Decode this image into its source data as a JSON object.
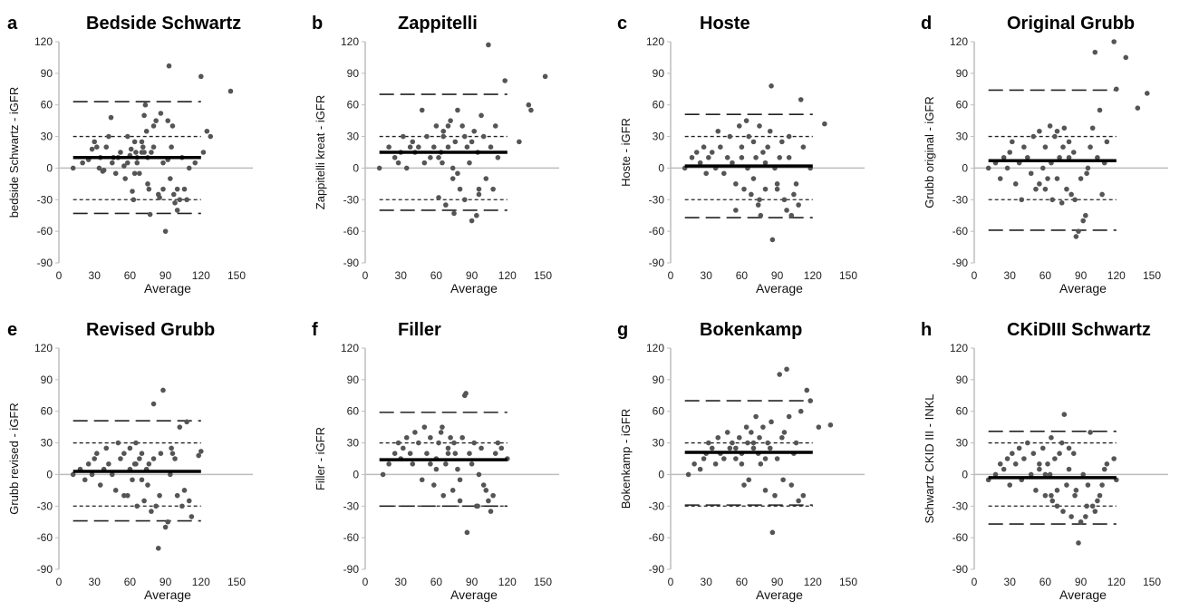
{
  "chart_data": [
    {
      "type": "scatter",
      "letter": "a",
      "title": "Bedside Schwartz",
      "xlabel": "Average",
      "ylabel": "bedside Schwartz - iGFR",
      "xlim": [
        0,
        150
      ],
      "ylim": [
        -90,
        120
      ],
      "xticks": [
        0,
        30,
        60,
        90,
        120,
        150
      ],
      "yticks": [
        -90,
        -60,
        -30,
        0,
        30,
        60,
        90,
        120
      ],
      "mean": 10,
      "loa": [
        -43,
        63
      ],
      "limits": [
        -30,
        30
      ],
      "x": [
        12,
        20,
        25,
        28,
        30,
        32,
        34,
        35,
        37,
        38,
        40,
        42,
        44,
        45,
        46,
        48,
        50,
        52,
        55,
        58,
        60,
        61,
        62,
        63,
        64,
        65,
        66,
        68,
        70,
        71,
        72,
        73,
        74,
        75,
        76,
        77,
        78,
        80,
        82,
        84,
        85,
        86,
        88,
        90,
        92,
        93,
        94,
        95,
        96,
        97,
        98,
        100,
        102,
        104,
        106,
        108,
        110,
        115,
        120,
        122,
        125,
        128,
        145,
        64,
        66,
        70,
        72,
        75,
        80,
        88,
        92,
        100,
        56,
        58
      ],
      "y": [
        0,
        5,
        8,
        18,
        25,
        20,
        0,
        10,
        -3,
        -2,
        20,
        30,
        48,
        5,
        10,
        -5,
        10,
        15,
        2,
        5,
        12,
        18,
        -22,
        -30,
        25,
        15,
        10,
        -5,
        15,
        20,
        50,
        60,
        35,
        -15,
        -20,
        -44,
        15,
        20,
        45,
        -25,
        -28,
        52,
        5,
        -60,
        8,
        97,
        -10,
        20,
        40,
        -25,
        -33,
        -40,
        -30,
        10,
        -20,
        -30,
        0,
        5,
        87,
        15,
        35,
        30,
        73,
        -5,
        5,
        25,
        15,
        10,
        40,
        -20,
        45,
        -20,
        -10,
        30
      ]
    },
    {
      "type": "scatter",
      "letter": "b",
      "title": "Zappitelli",
      "xlabel": "Average",
      "ylabel": "Zappitelli kreat - iGFR",
      "xlim": [
        0,
        150
      ],
      "ylim": [
        -90,
        120
      ],
      "xticks": [
        0,
        30,
        60,
        90,
        120,
        150
      ],
      "yticks": [
        -90,
        -60,
        -30,
        0,
        30,
        60,
        90,
        120
      ],
      "mean": 15,
      "loa": [
        -40,
        70
      ],
      "limits": [
        -30,
        30
      ],
      "x": [
        12,
        20,
        25,
        28,
        30,
        32,
        35,
        38,
        40,
        42,
        45,
        48,
        50,
        52,
        55,
        58,
        60,
        62,
        64,
        65,
        66,
        68,
        70,
        72,
        74,
        75,
        76,
        78,
        80,
        82,
        84,
        86,
        88,
        90,
        92,
        94,
        95,
        96,
        98,
        100,
        102,
        104,
        106,
        108,
        110,
        112,
        118,
        130,
        138,
        140,
        152,
        62,
        66,
        70,
        74,
        78,
        84,
        90,
        96
      ],
      "y": [
        0,
        20,
        10,
        5,
        15,
        30,
        0,
        20,
        25,
        15,
        20,
        55,
        5,
        30,
        10,
        20,
        40,
        -28,
        15,
        5,
        30,
        -35,
        40,
        45,
        -10,
        -43,
        25,
        55,
        -20,
        40,
        -30,
        20,
        5,
        -50,
        35,
        -45,
        15,
        -20,
        50,
        30,
        -10,
        117,
        20,
        -20,
        40,
        10,
        83,
        25,
        60,
        55,
        87,
        10,
        35,
        20,
        0,
        -5,
        30,
        25,
        -25
      ]
    },
    {
      "type": "scatter",
      "letter": "c",
      "title": "Hoste",
      "xlabel": "Average",
      "ylabel": "Hoste - iGFR",
      "xlim": [
        0,
        150
      ],
      "ylim": [
        -90,
        120
      ],
      "xticks": [
        0,
        30,
        60,
        90,
        120,
        150
      ],
      "yticks": [
        -90,
        -60,
        -30,
        0,
        30,
        60,
        90,
        120
      ],
      "mean": 2,
      "loa": [
        -47,
        51
      ],
      "limits": [
        -30,
        30
      ],
      "x": [
        12,
        18,
        22,
        25,
        28,
        30,
        32,
        35,
        38,
        40,
        42,
        45,
        48,
        50,
        52,
        55,
        58,
        60,
        62,
        64,
        65,
        66,
        68,
        70,
        72,
        74,
        75,
        76,
        78,
        80,
        82,
        84,
        85,
        86,
        88,
        90,
        92,
        94,
        96,
        98,
        100,
        102,
        104,
        106,
        108,
        110,
        112,
        118,
        130,
        60,
        65,
        70,
        80,
        90,
        100,
        55,
        75
      ],
      "y": [
        0,
        10,
        15,
        5,
        20,
        -5,
        10,
        15,
        0,
        35,
        20,
        -5,
        10,
        30,
        5,
        -15,
        40,
        20,
        -20,
        45,
        0,
        30,
        -25,
        25,
        10,
        -35,
        40,
        -45,
        15,
        -20,
        20,
        35,
        78,
        -68,
        0,
        -15,
        10,
        25,
        -30,
        -40,
        10,
        -45,
        -25,
        -15,
        -35,
        65,
        20,
        0,
        42,
        10,
        0,
        -10,
        5,
        -20,
        30,
        -40,
        -30
      ]
    },
    {
      "type": "scatter",
      "letter": "d",
      "title": "Original Grubb",
      "xlabel": "Average",
      "ylabel": "Grubb original - iGFR",
      "xlim": [
        0,
        150
      ],
      "ylim": [
        -90,
        120
      ],
      "xticks": [
        0,
        30,
        60,
        90,
        120,
        150
      ],
      "yticks": [
        -90,
        -60,
        -30,
        0,
        30,
        60,
        90,
        120
      ],
      "mean": 7,
      "loa": [
        -59,
        74
      ],
      "limits": [
        -30,
        30
      ],
      "x": [
        12,
        18,
        22,
        25,
        28,
        30,
        32,
        35,
        38,
        40,
        42,
        45,
        48,
        50,
        52,
        55,
        58,
        60,
        62,
        64,
        65,
        66,
        68,
        70,
        72,
        74,
        75,
        76,
        78,
        80,
        82,
        84,
        85,
        86,
        88,
        90,
        92,
        94,
        96,
        98,
        100,
        102,
        104,
        106,
        108,
        110,
        112,
        118,
        120,
        128,
        138,
        146,
        60,
        70,
        80,
        95,
        55
      ],
      "y": [
        0,
        5,
        -10,
        10,
        0,
        15,
        25,
        -15,
        5,
        -30,
        20,
        10,
        -5,
        30,
        -20,
        35,
        0,
        20,
        -10,
        40,
        5,
        -30,
        30,
        35,
        10,
        -33,
        20,
        38,
        -20,
        10,
        -25,
        15,
        -30,
        -65,
        -60,
        -10,
        -50,
        -45,
        0,
        20,
        38,
        110,
        10,
        55,
        -25,
        5,
        25,
        120,
        75,
        105,
        57,
        71,
        -20,
        -10,
        25,
        -5,
        -15
      ]
    },
    {
      "type": "scatter",
      "letter": "e",
      "title": "Revised Grubb",
      "xlabel": "Average",
      "ylabel": "Grubb revised - iGFR",
      "xlim": [
        0,
        150
      ],
      "ylim": [
        -90,
        120
      ],
      "xticks": [
        0,
        30,
        60,
        90,
        120,
        150
      ],
      "yticks": [
        -90,
        -60,
        -30,
        0,
        30,
        60,
        90,
        120
      ],
      "mean": 3,
      "loa": [
        -44,
        51
      ],
      "limits": [
        -30,
        30
      ],
      "x": [
        12,
        18,
        22,
        25,
        28,
        30,
        32,
        35,
        38,
        40,
        42,
        45,
        48,
        50,
        52,
        55,
        58,
        60,
        62,
        64,
        65,
        66,
        68,
        70,
        72,
        74,
        75,
        76,
        78,
        80,
        82,
        84,
        85,
        86,
        88,
        90,
        92,
        94,
        96,
        98,
        100,
        102,
        104,
        106,
        108,
        110,
        112,
        118,
        120,
        60,
        70,
        80,
        95,
        55,
        65
      ],
      "y": [
        0,
        5,
        -5,
        10,
        0,
        15,
        20,
        -10,
        5,
        25,
        10,
        0,
        -15,
        30,
        15,
        20,
        -20,
        25,
        -5,
        10,
        30,
        -30,
        15,
        20,
        -25,
        5,
        -10,
        10,
        -35,
        67,
        -30,
        -70,
        -20,
        20,
        80,
        -50,
        -45,
        0,
        20,
        15,
        -20,
        45,
        -30,
        -15,
        50,
        -25,
        -40,
        18,
        22,
        5,
        -5,
        15,
        25,
        -20,
        10
      ]
    },
    {
      "type": "scatter",
      "letter": "f",
      "title": "Filler",
      "xlabel": "Average",
      "ylabel": "Filler - iGFR",
      "xlim": [
        0,
        150
      ],
      "ylim": [
        -90,
        120
      ],
      "xticks": [
        0,
        30,
        60,
        90,
        120,
        150
      ],
      "yticks": [
        -90,
        -60,
        -30,
        0,
        30,
        60,
        90,
        120
      ],
      "mean": 14,
      "loa": [
        -30,
        59
      ],
      "limits": [
        -30,
        30
      ],
      "x": [
        15,
        20,
        25,
        28,
        30,
        32,
        35,
        38,
        40,
        42,
        45,
        48,
        50,
        52,
        55,
        58,
        60,
        62,
        64,
        65,
        66,
        68,
        70,
        72,
        74,
        75,
        76,
        78,
        80,
        82,
        84,
        85,
        86,
        88,
        90,
        92,
        94,
        96,
        98,
        100,
        102,
        104,
        106,
        108,
        110,
        112,
        115,
        120,
        60,
        70,
        80,
        95,
        55
      ],
      "y": [
        0,
        10,
        20,
        30,
        15,
        25,
        35,
        20,
        10,
        40,
        30,
        -5,
        45,
        20,
        35,
        -10,
        15,
        30,
        40,
        45,
        -20,
        10,
        25,
        35,
        -15,
        30,
        20,
        5,
        -25,
        35,
        75,
        77,
        -55,
        20,
        10,
        30,
        -30,
        0,
        25,
        -10,
        -15,
        -25,
        -35,
        -20,
        20,
        30,
        25,
        15,
        5,
        20,
        -5,
        -30,
        10
      ]
    },
    {
      "type": "scatter",
      "letter": "g",
      "title": "Bokenkamp",
      "xlabel": "Average",
      "ylabel": "Bokenkamp - iGFR",
      "xlim": [
        0,
        150
      ],
      "ylim": [
        -90,
        120
      ],
      "xticks": [
        0,
        30,
        60,
        90,
        120,
        150
      ],
      "yticks": [
        -90,
        -60,
        -30,
        0,
        30,
        60,
        90,
        120
      ],
      "mean": 21,
      "loa": [
        -29,
        70
      ],
      "limits": [
        -30,
        30
      ],
      "x": [
        15,
        20,
        25,
        28,
        30,
        32,
        35,
        38,
        40,
        42,
        45,
        48,
        50,
        52,
        55,
        58,
        60,
        62,
        64,
        65,
        66,
        68,
        70,
        72,
        74,
        75,
        76,
        78,
        80,
        82,
        84,
        85,
        86,
        88,
        90,
        92,
        94,
        96,
        98,
        100,
        102,
        104,
        106,
        108,
        110,
        112,
        115,
        118,
        125,
        135,
        60,
        70,
        80,
        95,
        55
      ],
      "y": [
        0,
        10,
        5,
        15,
        20,
        30,
        25,
        10,
        35,
        20,
        15,
        40,
        25,
        30,
        15,
        35,
        20,
        -10,
        45,
        30,
        -5,
        40,
        25,
        55,
        20,
        35,
        10,
        45,
        -15,
        30,
        25,
        50,
        -55,
        -20,
        15,
        95,
        35,
        40,
        100,
        55,
        -10,
        20,
        30,
        -25,
        60,
        -20,
        80,
        70,
        45,
        47,
        10,
        30,
        15,
        -5,
        25
      ]
    },
    {
      "type": "scatter",
      "letter": "h",
      "title": "CKiDIII Schwartz",
      "xlabel": "Average",
      "ylabel": "Schwartz CKID III - INKL",
      "xlim": [
        0,
        150
      ],
      "ylim": [
        -90,
        120
      ],
      "xticks": [
        0,
        30,
        60,
        90,
        120,
        150
      ],
      "yticks": [
        -90,
        -60,
        -30,
        0,
        30,
        60,
        90,
        120
      ],
      "mean": -3,
      "loa": [
        -47,
        41
      ],
      "limits": [
        -30,
        30
      ],
      "x": [
        12,
        18,
        22,
        25,
        28,
        30,
        32,
        35,
        38,
        40,
        42,
        45,
        48,
        50,
        52,
        55,
        58,
        60,
        62,
        64,
        65,
        66,
        68,
        70,
        72,
        74,
        75,
        76,
        78,
        80,
        82,
        84,
        85,
        86,
        88,
        90,
        92,
        94,
        96,
        98,
        100,
        102,
        104,
        106,
        108,
        110,
        112,
        118,
        120,
        60,
        70,
        80,
        95,
        55,
        65
      ],
      "y": [
        -5,
        0,
        10,
        5,
        15,
        -10,
        20,
        10,
        25,
        -5,
        15,
        30,
        0,
        20,
        -15,
        5,
        25,
        -20,
        10,
        0,
        35,
        -25,
        15,
        -30,
        20,
        30,
        -35,
        57,
        -10,
        5,
        -40,
        20,
        -20,
        -15,
        -65,
        -45,
        0,
        -40,
        -10,
        40,
        -30,
        -35,
        -25,
        -20,
        -10,
        5,
        10,
        15,
        -5,
        0,
        -15,
        25,
        -30,
        10,
        -20
      ]
    }
  ]
}
